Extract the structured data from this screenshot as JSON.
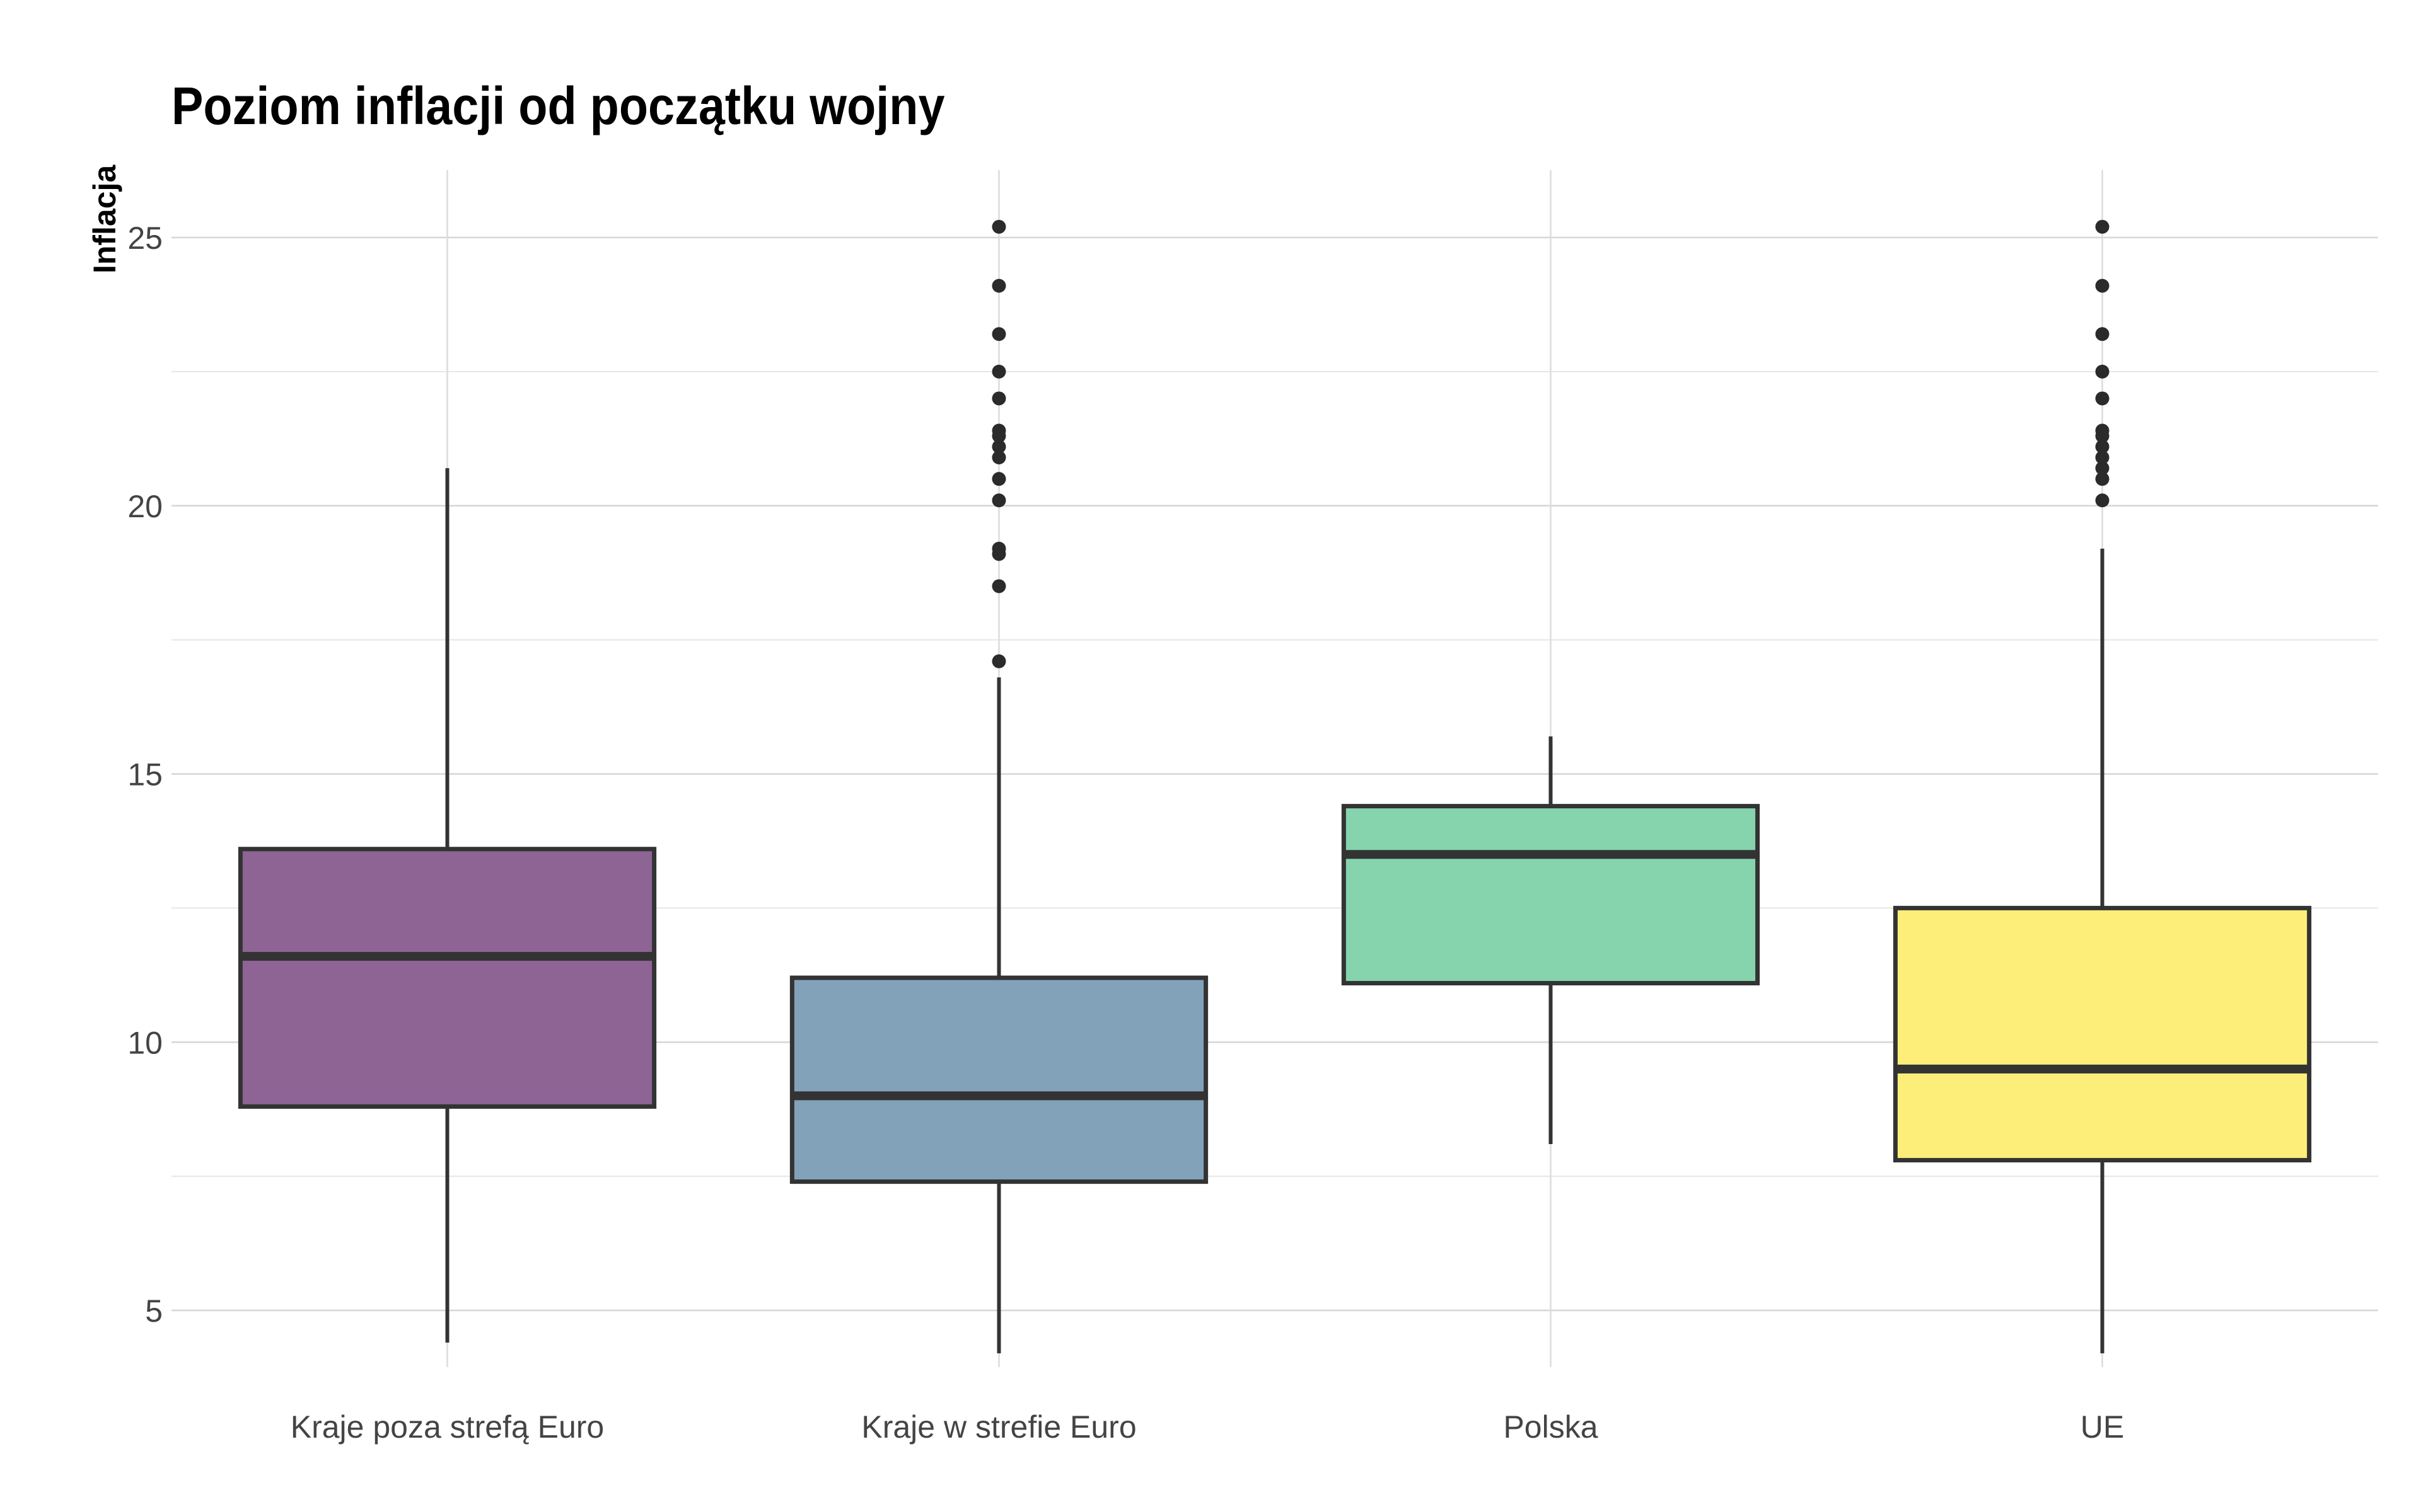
{
  "chart_data": {
    "type": "boxplot",
    "title": "Poziom inflacji od początku wojny",
    "xlabel": "",
    "ylabel": "Inflacja",
    "ylim": [
      3.4,
      26.3
    ],
    "yticks": [
      5,
      10,
      15,
      20,
      25
    ],
    "grid": true,
    "legend": "none",
    "categories": [
      "Kraje poza strefą Euro",
      "Kraje w strefie Euro",
      "Polska",
      "UE"
    ],
    "boxes": [
      {
        "category": "Kraje poza strefą Euro",
        "color": "#8d6494",
        "whisker_low": 4.4,
        "q1": 8.8,
        "median": 11.6,
        "q3": 13.6,
        "whisker_high": 20.7,
        "outliers": []
      },
      {
        "category": "Kraje w strefie Euro",
        "color": "#82a2ba",
        "whisker_low": 4.2,
        "q1": 7.4,
        "median": 9.0,
        "q3": 11.2,
        "whisker_high": 16.8,
        "outliers": [
          17.1,
          18.5,
          19.1,
          19.2,
          20.1,
          20.5,
          20.9,
          21.1,
          21.3,
          21.4,
          22.0,
          22.5,
          23.2,
          24.1,
          25.2
        ]
      },
      {
        "category": "Polska",
        "color": "#85d4ad",
        "whisker_low": 8.1,
        "q1": 11.1,
        "median": 13.5,
        "q3": 14.4,
        "whisker_high": 15.7,
        "outliers": []
      },
      {
        "category": "UE",
        "color": "#fdee7a",
        "whisker_low": 4.2,
        "q1": 7.8,
        "median": 9.5,
        "q3": 12.5,
        "whisker_high": 19.2,
        "outliers": [
          20.1,
          20.5,
          20.7,
          20.9,
          21.1,
          21.3,
          21.4,
          22.0,
          22.5,
          23.2,
          24.1,
          25.2
        ]
      }
    ]
  }
}
